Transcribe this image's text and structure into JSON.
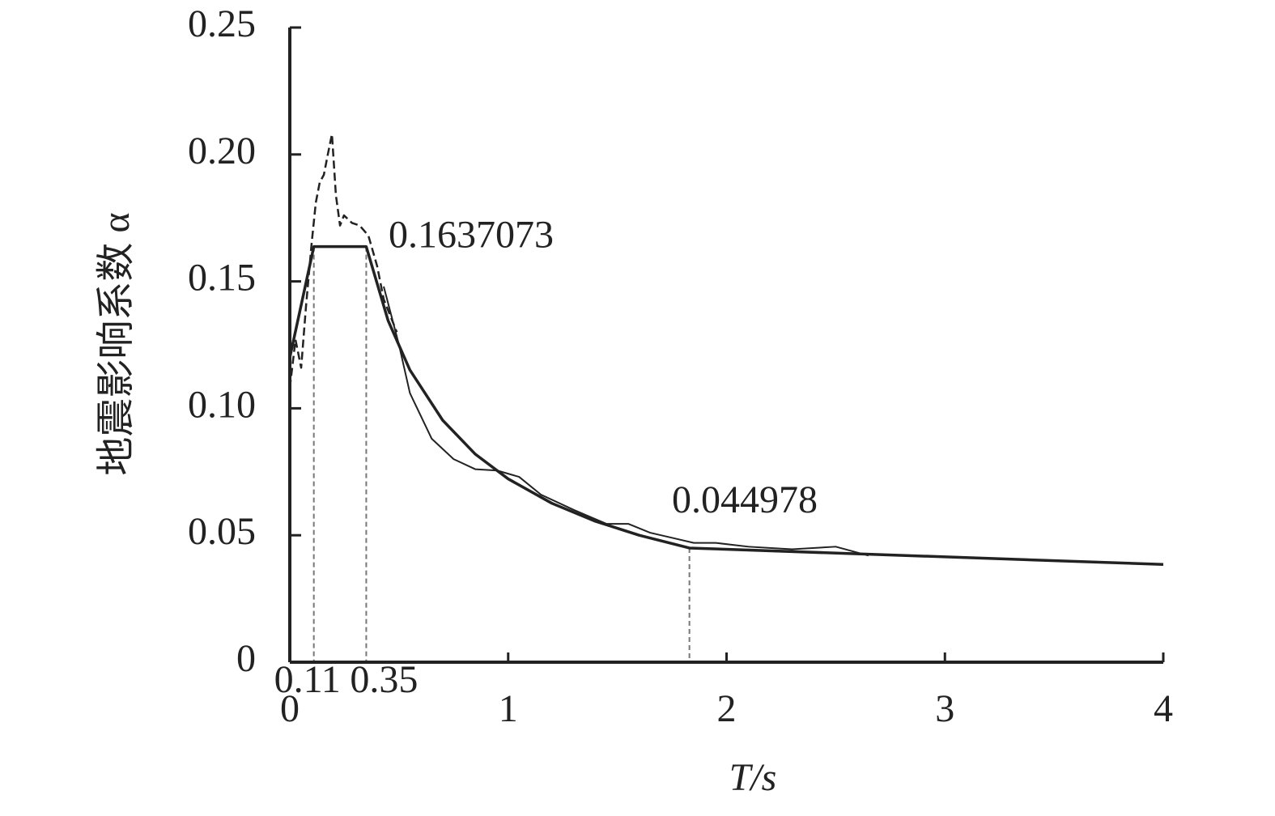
{
  "chart_data": {
    "type": "line",
    "ylabel": "地震影响系数 α",
    "xlabel": "T/s",
    "xlim": [
      0,
      4
    ],
    "ylim": [
      0,
      0.25
    ],
    "xticks": [
      0,
      1,
      2,
      3,
      4
    ],
    "yticks": [
      0,
      0.05,
      {
        "value": 0.1,
        "label": "0.10"
      },
      0.15,
      {
        "value": 0.2,
        "label": "0.20"
      },
      0.25
    ],
    "marked_x": [
      0.11,
      0.35
    ],
    "guide_x": 1.83,
    "annotations": [
      {
        "text": "0.1637073",
        "value": 0.1637073
      },
      {
        "text": "0.044978",
        "value": 0.044978
      }
    ],
    "series": [
      {
        "color": "#222222",
        "style": "solid",
        "width": 3.5,
        "x": [
          0,
          0.11,
          0.35,
          0.45,
          0.55,
          0.7,
          0.85,
          1.0,
          1.2,
          1.4,
          1.6,
          1.83,
          4
        ],
        "values": [
          0.12,
          0.1637073,
          0.1637073,
          0.1346,
          0.1151,
          0.0953,
          0.0819,
          0.0722,
          0.0626,
          0.0555,
          0.05,
          0.044978,
          0.0385
        ]
      },
      {
        "color": "#222222",
        "style": "dashed",
        "width": 2.5,
        "x": [
          0,
          0.026,
          0.052,
          0.074,
          0.1,
          0.119,
          0.137,
          0.156,
          0.174,
          0.193,
          0.211,
          0.23,
          0.248,
          0.285,
          0.32,
          0.36,
          0.4,
          0.43,
          0.49
        ],
        "values": [
          0.108,
          0.127,
          0.116,
          0.14,
          0.165,
          0.181,
          0.189,
          0.192,
          0.2,
          0.208,
          0.184,
          0.172,
          0.176,
          0.173,
          0.172,
          0.168,
          0.156,
          0.143,
          0.13
        ]
      },
      {
        "color": "#222222",
        "style": "solid",
        "width": 2,
        "x": [
          0.43,
          0.5,
          0.55,
          0.65,
          0.75,
          0.85,
          0.95,
          1.05,
          1.15,
          1.3,
          1.45,
          1.55,
          1.65,
          1.75,
          1.85,
          1.95,
          2.1,
          2.3,
          2.5,
          2.65
        ],
        "values": [
          0.148,
          0.125,
          0.106,
          0.088,
          0.08,
          0.076,
          0.0755,
          0.073,
          0.066,
          0.06,
          0.0545,
          0.0545,
          0.051,
          0.049,
          0.047,
          0.047,
          0.0455,
          0.0445,
          0.0455,
          0.042
        ]
      }
    ]
  }
}
